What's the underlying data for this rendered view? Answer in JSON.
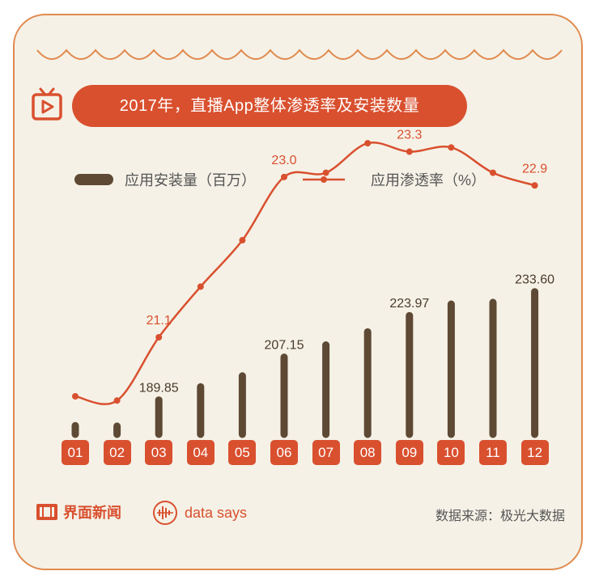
{
  "title": "2017年，直播App整体渗透率及安装数量",
  "legend": {
    "bar_label": "应用安装量（百万）",
    "line_label": "应用渗透率（%）"
  },
  "footer": {
    "brand": "界面新闻",
    "brand2": "data says",
    "source": "数据来源：极光大数据"
  },
  "colors": {
    "bar": "#5e4934",
    "line": "#d9502f",
    "background": "#f5f1e6",
    "border": "#e08a4e"
  },
  "chart_data": {
    "type": "bar+line",
    "categories": [
      "01",
      "02",
      "03",
      "04",
      "05",
      "06",
      "07",
      "08",
      "09",
      "10",
      "11",
      "12"
    ],
    "series": [
      {
        "name": "应用安装量（百万）",
        "type": "bar",
        "values": [
          179.5,
          179.3,
          189.85,
          195.2,
          199.6,
          207.15,
          212.1,
          217.4,
          223.97,
          228.6,
          229.3,
          233.6
        ],
        "labels": [
          "",
          "",
          "189.85",
          "",
          "",
          "207.15",
          "",
          "",
          "223.97",
          "",
          "",
          "233.60"
        ]
      },
      {
        "name": "应用渗透率（%）",
        "type": "line",
        "values": [
          20.4,
          20.35,
          21.1,
          21.7,
          22.25,
          23.0,
          23.05,
          23.4,
          23.3,
          23.35,
          23.05,
          22.9
        ],
        "labels": [
          "",
          "",
          "21.1",
          "",
          "",
          "23.0",
          "",
          "",
          "23.3",
          "",
          "",
          "22.9"
        ]
      }
    ]
  }
}
